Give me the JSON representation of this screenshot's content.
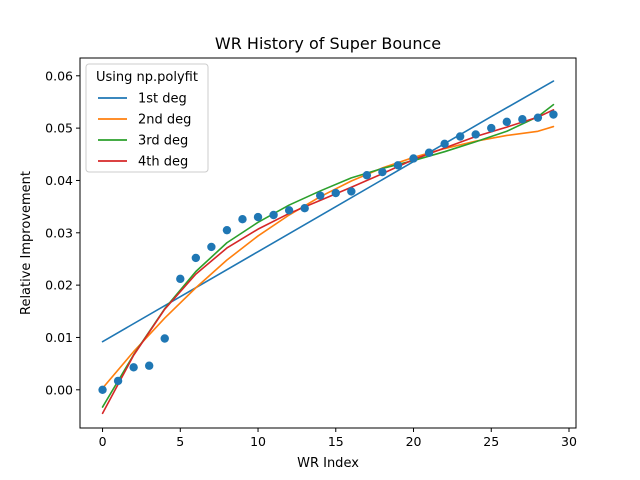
{
  "chart_data": {
    "type": "scatter",
    "title": "WR History of Super Bounce",
    "xlabel": "WR Index",
    "ylabel": "Relative Improvement",
    "xlim": [
      -1.45,
      30.45
    ],
    "ylim": [
      -0.0073,
      0.0634
    ],
    "xticks": [
      0,
      5,
      10,
      15,
      20,
      25,
      30
    ],
    "xtick_labels": [
      "0",
      "5",
      "10",
      "15",
      "20",
      "25",
      "30"
    ],
    "yticks": [
      0.0,
      0.01,
      0.02,
      0.03,
      0.04,
      0.05,
      0.06
    ],
    "ytick_labels": [
      "0.00",
      "0.01",
      "0.02",
      "0.03",
      "0.04",
      "0.05",
      "0.06"
    ],
    "grid": false,
    "legend": {
      "title": "Using np.polyfit",
      "placement": "top-left"
    },
    "points": {
      "color": "#1f77b4",
      "x": [
        0,
        1,
        2,
        3,
        4,
        5,
        6,
        7,
        8,
        9,
        10,
        11,
        12,
        13,
        14,
        15,
        16,
        17,
        18,
        19,
        20,
        21,
        22,
        23,
        24,
        25,
        26,
        27,
        28,
        29
      ],
      "y": [
        0.0,
        0.0017,
        0.0043,
        0.0046,
        0.0098,
        0.0212,
        0.0252,
        0.0273,
        0.0305,
        0.0326,
        0.033,
        0.0334,
        0.0343,
        0.0347,
        0.0371,
        0.0376,
        0.0379,
        0.041,
        0.0416,
        0.0429,
        0.0442,
        0.0453,
        0.047,
        0.0484,
        0.0488,
        0.05,
        0.0512,
        0.0517,
        0.052,
        0.0526
      ]
    },
    "series": [
      {
        "name": "1st deg",
        "color": "#1f77b4",
        "degree": 1,
        "x": [
          0,
          5,
          10,
          15,
          20,
          25,
          29
        ],
        "y": [
          0.0092,
          0.0178,
          0.0264,
          0.035,
          0.0436,
          0.0522,
          0.059
        ]
      },
      {
        "name": "2nd deg",
        "color": "#ff7f0e",
        "degree": 2,
        "x": [
          0,
          2,
          4,
          6,
          8,
          10,
          12,
          14,
          16,
          18,
          20,
          22,
          24,
          26,
          28,
          29
        ],
        "y": [
          0.0003,
          0.0073,
          0.0137,
          0.0195,
          0.0248,
          0.0294,
          0.0334,
          0.0369,
          0.0399,
          0.0424,
          0.0444,
          0.0461,
          0.0475,
          0.0486,
          0.0494,
          0.0503
        ]
      },
      {
        "name": "3rd deg",
        "color": "#2ca02c",
        "degree": 3,
        "x": [
          0,
          2,
          4,
          6,
          8,
          10,
          12,
          14,
          16,
          18,
          20,
          22,
          24,
          26,
          28,
          29
        ],
        "y": [
          -0.0033,
          0.0067,
          0.0155,
          0.0226,
          0.0281,
          0.032,
          0.0353,
          0.038,
          0.0405,
          0.0423,
          0.0438,
          0.0455,
          0.0474,
          0.0494,
          0.0522,
          0.0545
        ]
      },
      {
        "name": "4th deg",
        "color": "#d62728",
        "degree": 4,
        "x": [
          0,
          2,
          4,
          6,
          8,
          10,
          12,
          14,
          16,
          18,
          20,
          22,
          24,
          26,
          28,
          29
        ],
        "y": [
          -0.0045,
          0.0066,
          0.0154,
          0.0221,
          0.0271,
          0.0307,
          0.0337,
          0.0362,
          0.0387,
          0.0413,
          0.044,
          0.0462,
          0.0484,
          0.0502,
          0.0521,
          0.0535
        ]
      }
    ]
  }
}
